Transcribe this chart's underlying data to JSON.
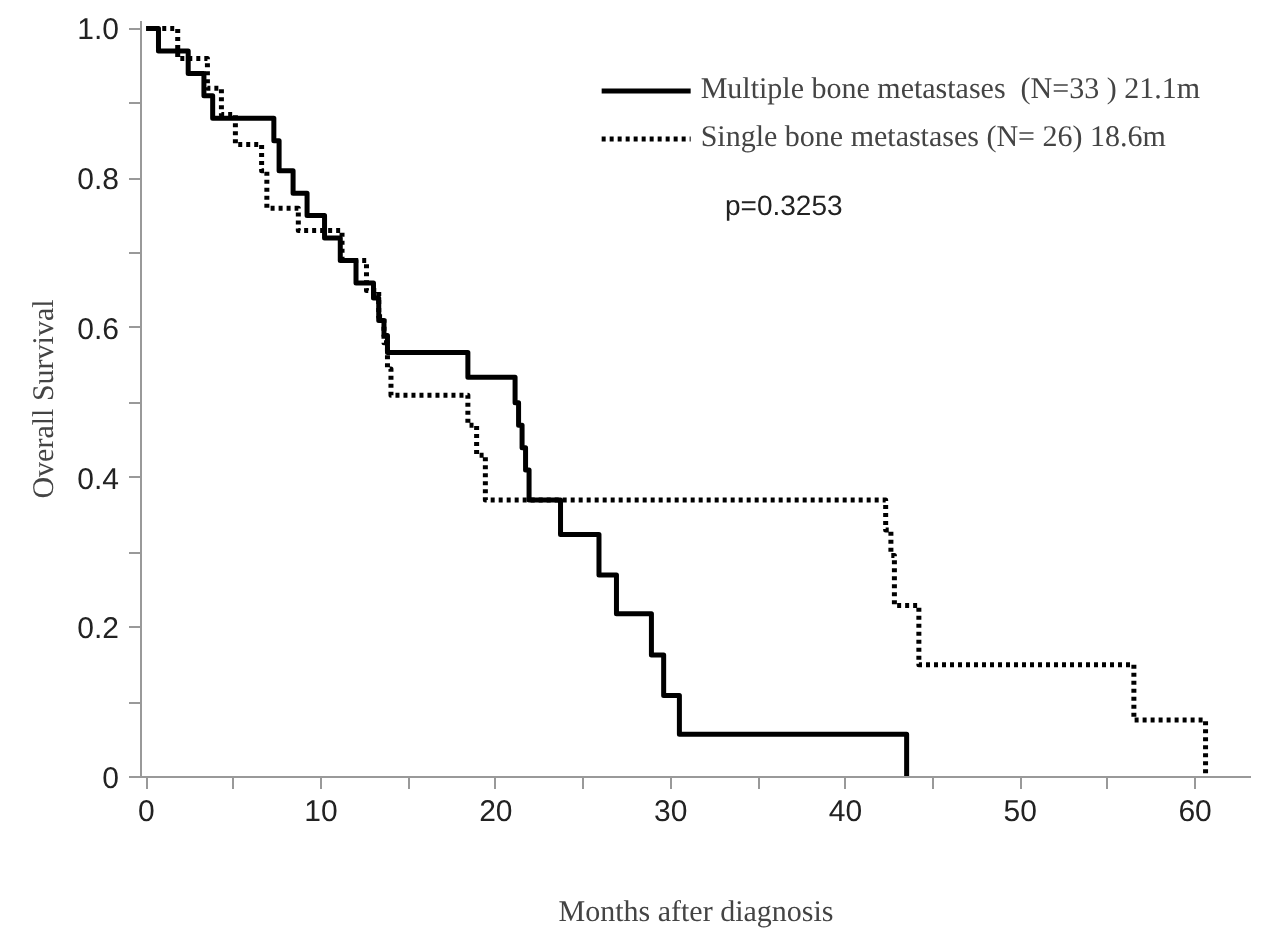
{
  "chart_data": {
    "type": "step",
    "xlabel": "Months after diagnosis",
    "ylabel": "Overall Survival",
    "xlim": [
      -0.3,
      63.2
    ],
    "ylim": [
      0,
      1.01
    ],
    "xticks": [
      0,
      {
        "value": 5,
        "label": null
      },
      10,
      {
        "value": 15,
        "label": null
      },
      20,
      {
        "value": 25,
        "label": null
      },
      30,
      {
        "value": 35,
        "label": null
      },
      40,
      {
        "value": 45,
        "label": null
      },
      50,
      {
        "value": 55,
        "label": null
      },
      60
    ],
    "yticks": [
      0,
      {
        "value": 0.1,
        "label": null
      },
      0.2,
      {
        "value": 0.3,
        "label": null
      },
      0.4,
      {
        "value": 0.5,
        "label": null
      },
      0.6,
      {
        "value": 0.7,
        "label": null
      },
      0.8,
      {
        "value": 0.9,
        "label": null
      },
      {
        "value": 1,
        "label": "1.0"
      }
    ],
    "legend": "top right",
    "grid": false,
    "marker": "none",
    "annotations": [
      "p=0.3253"
    ],
    "series": [
      {
        "name": "Multiple bone metastases  (N=33 ) 21.1m",
        "color": "#000000",
        "line_style": "solid",
        "x": [
          0,
          0.7,
          2.4,
          3.3,
          3.8,
          7.3,
          7.6,
          8.4,
          9.2,
          10.2,
          11.1,
          12.0,
          13.0,
          13.3,
          13.6,
          13.8,
          18.4,
          21.1,
          21.3,
          21.5,
          21.7,
          21.9,
          23.7,
          25.9,
          26.9,
          28.9,
          29.6,
          30.5,
          43.5
        ],
        "values": [
          1.0,
          0.97,
          0.94,
          0.91,
          0.88,
          0.85,
          0.81,
          0.78,
          0.75,
          0.72,
          0.69,
          0.66,
          0.64,
          0.61,
          0.59,
          0.567,
          0.534,
          0.5,
          0.47,
          0.44,
          0.41,
          0.37,
          0.324,
          0.27,
          0.218,
          0.163,
          0.109,
          0.057,
          0
        ]
      },
      {
        "name": "Single bone metastases (N= 26) 18.6m",
        "color": "#000000",
        "line_style": "dotted",
        "x": [
          0,
          1.8,
          3.5,
          4.3,
          5.1,
          6.6,
          6.9,
          8.7,
          11.2,
          12.6,
          13.3,
          13.6,
          13.8,
          14.0,
          18.4,
          18.9,
          19.4,
          42.3,
          42.6,
          42.8,
          44.2,
          56.5,
          60.6
        ],
        "values": [
          1.0,
          0.96,
          0.92,
          0.885,
          0.845,
          0.81,
          0.76,
          0.73,
          0.69,
          0.65,
          0.615,
          0.58,
          0.545,
          0.51,
          0.47,
          0.43,
          0.37,
          0.33,
          0.296,
          0.229,
          0.15,
          0.076,
          0
        ]
      }
    ]
  }
}
